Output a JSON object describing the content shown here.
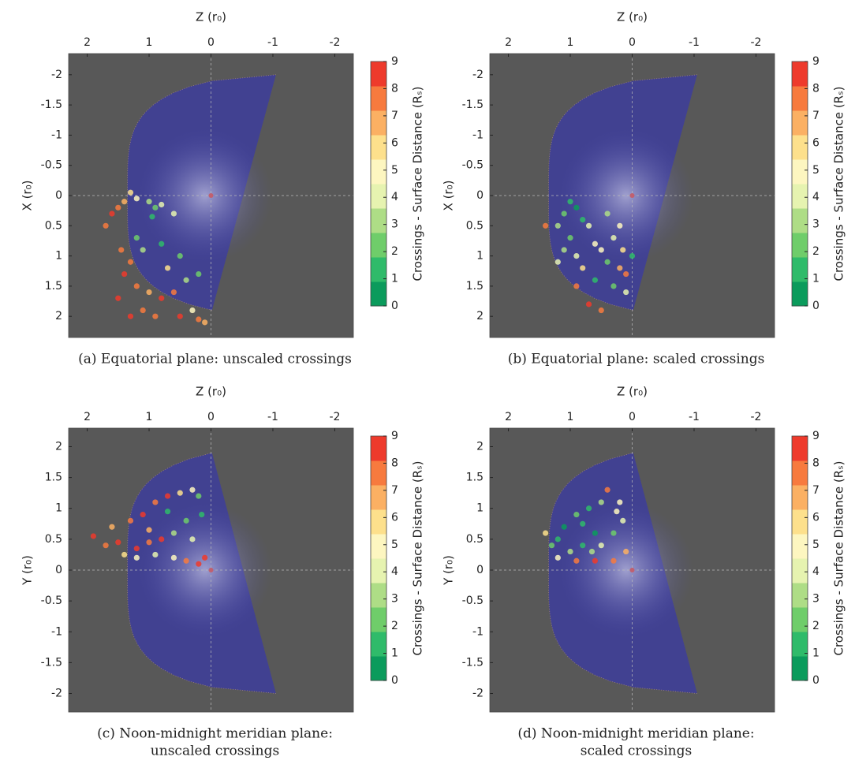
{
  "chart_data": [
    {
      "type": "scatter",
      "title": [
        "(a) Equatorial plane: unscaled crossings"
      ],
      "xlabel": "Z (r₀)",
      "ylabel": "X (r₀)",
      "colorbar_label": "Crossings - Surface Distance (Rₛ)",
      "xlim": [
        2.3,
        -2.3
      ],
      "xticks": [
        2,
        1,
        0,
        -1,
        -2
      ],
      "ylim": [
        2.35,
        -2.35
      ],
      "yticks": [
        -2,
        -1.5,
        -1,
        -0.5,
        0,
        0.5,
        1,
        1.5,
        2
      ],
      "clim": [
        0,
        9
      ],
      "cticks": [
        0,
        1,
        2,
        3,
        4,
        5,
        6,
        7,
        8,
        9
      ],
      "colors": [
        "#0b9b5c",
        "#2fbb6a",
        "#6fcd6a",
        "#aedd86",
        "#e6f3b0",
        "#fdf6c0",
        "#fde08c",
        "#fbb063",
        "#f77a3e",
        "#ee3a2c"
      ],
      "background": "#585858",
      "x": [
        1.5,
        1.6,
        1.7,
        1.4,
        1.3,
        1.2,
        1.0,
        0.9,
        0.8,
        0.95,
        0.6,
        1.2,
        1.1,
        0.8,
        0.5,
        1.3,
        1.4,
        1.2,
        1.5,
        1.0,
        0.8,
        0.6,
        0.4,
        0.3,
        0.2,
        0.1,
        0.5,
        0.9,
        1.3,
        0.2,
        1.1,
        0.7,
        1.45
      ],
      "values": [
        0.2,
        0.3,
        0.5,
        0.1,
        -0.05,
        0.05,
        0.1,
        0.2,
        0.15,
        0.35,
        0.3,
        0.7,
        0.9,
        0.8,
        1.0,
        1.1,
        1.3,
        1.5,
        1.7,
        1.6,
        1.7,
        1.6,
        1.4,
        1.9,
        2.05,
        2.1,
        2.0,
        2.0,
        2.0,
        1.3,
        1.9,
        1.2,
        0.9
      ],
      "c": [
        8,
        9,
        8,
        7,
        6,
        5,
        3,
        2,
        4,
        1,
        4,
        2,
        3,
        1,
        2,
        8,
        9,
        8,
        9,
        7,
        9,
        8,
        3,
        5,
        8,
        7,
        9,
        8,
        9,
        2,
        8,
        6,
        8
      ]
    },
    {
      "type": "scatter",
      "title": [
        "(b) Equatorial plane: scaled crossings"
      ],
      "xlabel": "Z (r₀)",
      "ylabel": "X (r₀)",
      "colorbar_label": "Crossings - Surface Distance (Rₛ)",
      "xlim": [
        2.3,
        -2.3
      ],
      "xticks": [
        2,
        1,
        0,
        -1,
        -2
      ],
      "ylim": [
        2.35,
        -2.35
      ],
      "yticks": [
        -2,
        -1.5,
        -1,
        -0.5,
        0,
        0.5,
        1,
        1.5,
        2
      ],
      "clim": [
        0,
        9
      ],
      "cticks": [
        0,
        1,
        2,
        3,
        4,
        5,
        6,
        7,
        8,
        9
      ],
      "colors": [
        "#0b9b5c",
        "#2fbb6a",
        "#6fcd6a",
        "#aedd86",
        "#e6f3b0",
        "#fdf6c0",
        "#fde08c",
        "#fbb063",
        "#f77a3e",
        "#ee3a2c"
      ],
      "background": "#585858",
      "x": [
        1.0,
        0.9,
        1.1,
        0.8,
        1.2,
        0.7,
        1.0,
        0.6,
        1.1,
        0.9,
        0.5,
        0.3,
        0.2,
        0.8,
        0.4,
        0.2,
        0.1,
        0.6,
        0.3,
        0.1,
        0.9,
        0.7,
        0.5,
        1.4,
        1.2,
        0.0,
        0.4,
        0.15
      ],
      "values": [
        0.1,
        0.2,
        0.3,
        0.4,
        0.5,
        0.5,
        0.7,
        0.8,
        0.9,
        1.0,
        0.9,
        0.7,
        0.5,
        1.2,
        1.1,
        1.2,
        1.3,
        1.4,
        1.5,
        1.6,
        1.5,
        1.8,
        1.9,
        0.5,
        1.1,
        1.0,
        0.3,
        0.9
      ],
      "c": [
        1,
        0,
        2,
        1,
        3,
        4,
        2,
        5,
        3,
        4,
        5,
        4,
        5,
        6,
        2,
        7,
        8,
        1,
        2,
        4,
        8,
        9,
        8,
        8,
        4,
        1,
        3,
        6
      ]
    },
    {
      "type": "scatter",
      "title": [
        "(c) Noon-midnight meridian plane:",
        "unscaled crossings"
      ],
      "xlabel": "Z (r₀)",
      "ylabel": "Y (r₀)",
      "colorbar_label": "Crossings - Surface Distance (Rₛ)",
      "xlim": [
        2.3,
        -2.3
      ],
      "xticks": [
        2,
        1,
        0,
        -1,
        -2
      ],
      "ylim": [
        -2.3,
        2.3
      ],
      "yticks": [
        -2,
        -1.5,
        -1,
        -0.5,
        0,
        0.5,
        1,
        1.5,
        2
      ],
      "clim": [
        0,
        9
      ],
      "cticks": [
        0,
        1,
        2,
        3,
        4,
        5,
        6,
        7,
        8,
        9
      ],
      "colors": [
        "#0b9b5c",
        "#2fbb6a",
        "#6fcd6a",
        "#aedd86",
        "#e6f3b0",
        "#fdf6c0",
        "#fde08c",
        "#fbb063",
        "#f77a3e",
        "#ee3a2c"
      ],
      "background": "#585858",
      "x": [
        1.9,
        1.7,
        1.5,
        1.6,
        1.3,
        1.1,
        0.9,
        0.7,
        0.5,
        0.3,
        0.2,
        0.15,
        0.4,
        0.6,
        0.8,
        1.0,
        1.2,
        1.4,
        0.9,
        0.6,
        0.4,
        0.2,
        0.1,
        0.7,
        1.0,
        1.2,
        0.3
      ],
      "values": [
        0.55,
        0.4,
        0.45,
        0.7,
        0.8,
        0.9,
        1.1,
        1.2,
        1.25,
        1.3,
        1.2,
        0.9,
        0.8,
        0.6,
        0.5,
        0.45,
        0.35,
        0.25,
        0.25,
        0.2,
        0.15,
        0.1,
        0.2,
        0.95,
        0.65,
        0.2,
        0.5
      ],
      "c": [
        9,
        8,
        9,
        7,
        8,
        9,
        8,
        9,
        6,
        5,
        2,
        1,
        2,
        3,
        9,
        8,
        9,
        6,
        4,
        5,
        8,
        9,
        9,
        1,
        7,
        5,
        4
      ]
    },
    {
      "type": "scatter",
      "title": [
        "(d) Noon-midnight meridian plane:",
        "scaled crossings"
      ],
      "xlabel": "Z (r₀)",
      "ylabel": "Y (r₀)",
      "colorbar_label": "Crossings - Surface Distance (Rₛ)",
      "xlim": [
        2.3,
        -2.3
      ],
      "xticks": [
        2,
        1,
        0,
        -1,
        -2
      ],
      "ylim": [
        -2.3,
        2.3
      ],
      "yticks": [
        -2,
        -1.5,
        -1,
        -0.5,
        0,
        0.5,
        1,
        1.5,
        2
      ],
      "clim": [
        0,
        9
      ],
      "cticks": [
        0,
        1,
        2,
        3,
        4,
        5,
        6,
        7,
        8,
        9
      ],
      "colors": [
        "#0b9b5c",
        "#2fbb6a",
        "#6fcd6a",
        "#aedd86",
        "#e6f3b0",
        "#fdf6c0",
        "#fde08c",
        "#fbb063",
        "#f77a3e",
        "#ee3a2c"
      ],
      "background": "#585858",
      "x": [
        1.2,
        1.1,
        0.9,
        0.7,
        0.5,
        0.4,
        0.2,
        0.15,
        0.3,
        0.6,
        0.8,
        1.0,
        1.2,
        0.9,
        0.6,
        0.3,
        0.1,
        0.5,
        1.3,
        0.8,
        1.4,
        0.25,
        0.65
      ],
      "values": [
        0.5,
        0.7,
        0.9,
        1.0,
        1.1,
        1.3,
        1.1,
        0.8,
        0.6,
        0.6,
        0.4,
        0.3,
        0.2,
        0.15,
        0.15,
        0.15,
        0.3,
        0.4,
        0.4,
        0.75,
        0.6,
        0.95,
        0.3
      ],
      "c": [
        1,
        0,
        2,
        1,
        3,
        8,
        5,
        4,
        2,
        0,
        1,
        3,
        5,
        8,
        9,
        8,
        7,
        4,
        2,
        1,
        6,
        5,
        3
      ]
    }
  ]
}
